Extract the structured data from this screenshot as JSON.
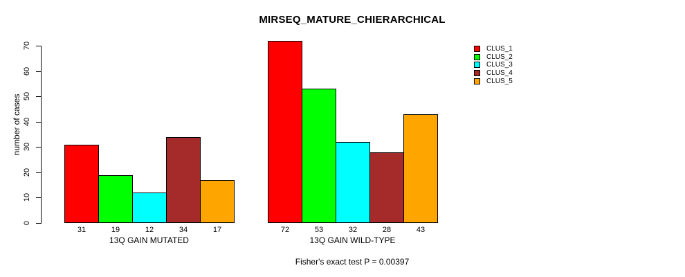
{
  "chart_data": {
    "type": "bar",
    "title": "MIRSEQ_MATURE_CHIERARCHICAL",
    "ylabel": "number of cases",
    "xlabel": "",
    "ylim": [
      0,
      70
    ],
    "yticks": [
      0,
      10,
      20,
      30,
      40,
      50,
      60,
      70
    ],
    "grid": false,
    "bar_colors": [
      "#FF0000",
      "#00FF00",
      "#00FFFF",
      "#A52A2A",
      "#FFA500"
    ],
    "groups": [
      {
        "label": "13Q GAIN MUTATED",
        "values": [
          31,
          19,
          12,
          34,
          17
        ]
      },
      {
        "label": "13Q GAIN WILD-TYPE",
        "values": [
          72,
          53,
          32,
          28,
          43
        ]
      }
    ],
    "series": [
      {
        "name": "CLUS_1",
        "color": "#FF0000",
        "values": [
          31,
          72
        ]
      },
      {
        "name": "CLUS_2",
        "color": "#00FF00",
        "values": [
          19,
          53
        ]
      },
      {
        "name": "CLUS_3",
        "color": "#00FFFF",
        "values": [
          12,
          32
        ]
      },
      {
        "name": "CLUS_4",
        "color": "#A52A2A",
        "values": [
          34,
          28
        ]
      },
      {
        "name": "CLUS_5",
        "color": "#FFA500",
        "values": [
          17,
          43
        ]
      }
    ],
    "legend": {
      "position": "right-outside",
      "entries": [
        {
          "label": "CLUS_1",
          "color": "#FF0000"
        },
        {
          "label": "CLUS_2",
          "color": "#00FF00"
        },
        {
          "label": "CLUS_3",
          "color": "#00FFFF"
        },
        {
          "label": "CLUS_4",
          "color": "#A52A2A"
        },
        {
          "label": "CLUS_5",
          "color": "#FFA500"
        }
      ]
    },
    "annotation": "Fisher's exact test P = 0.00397",
    "text_color": "#000000",
    "background_color": "#FFFFFF"
  }
}
